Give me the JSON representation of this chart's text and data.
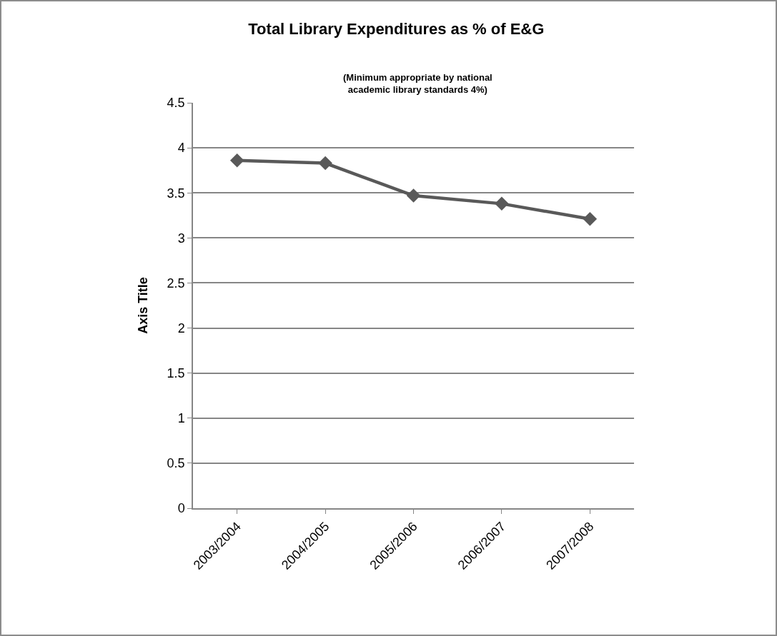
{
  "chart_data": {
    "type": "line",
    "title": "Total Library Expenditures as % of E&G",
    "subtitle": "(Minimum appropriate by national\nacademic library standards 4%)",
    "ylabel": "Axis Title",
    "categories": [
      "2003/2004",
      "2004/2005",
      "2005/2006",
      "2006/2007",
      "2007/2008"
    ],
    "series": [
      {
        "color": "#595959",
        "values": [
          3.86,
          3.83,
          3.47,
          3.38,
          3.21
        ]
      }
    ],
    "ylim": [
      0,
      4.5
    ],
    "yticks": [
      0,
      0.5,
      1,
      1.5,
      2,
      2.5,
      3,
      3.5,
      4,
      4.5
    ],
    "grid": "y",
    "marker": "diamond",
    "line_style": "solid"
  }
}
